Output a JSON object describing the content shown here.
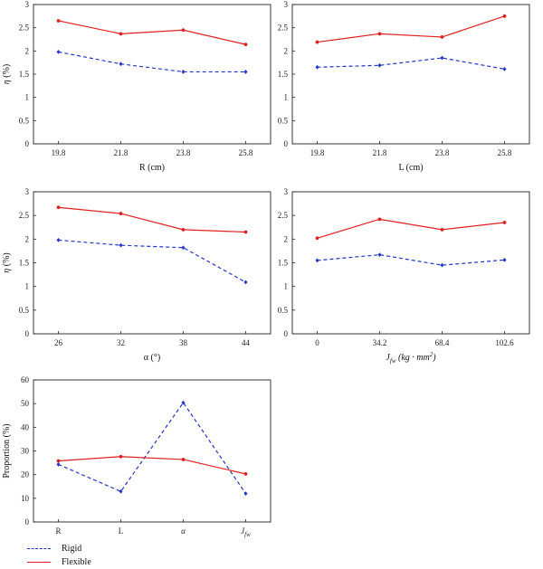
{
  "colors": {
    "rigid": "#2233cc",
    "flexible": "#e02020"
  },
  "legend": {
    "placement": "bottom-left",
    "rigid_label": "Rigid",
    "flexible_label": "Flexible"
  },
  "chart_data": [
    {
      "type": "line",
      "xlabel": "R (cm)",
      "ylabel": "η (%)",
      "categories": [
        "19.8",
        "21.8",
        "23.8",
        "25.8"
      ],
      "ylim": [
        0,
        3
      ],
      "yticks": [
        "0",
        "0.5",
        "1",
        "1.5",
        "2",
        "2.5",
        "3"
      ],
      "series": [
        {
          "name": "Rigid",
          "values": [
            1.98,
            1.72,
            1.55,
            1.55
          ]
        },
        {
          "name": "Flexible",
          "values": [
            2.65,
            2.37,
            2.45,
            2.14
          ]
        }
      ]
    },
    {
      "type": "line",
      "xlabel": "L (cm)",
      "ylabel": "",
      "categories": [
        "19.8",
        "21.8",
        "23.8",
        "25.8"
      ],
      "ylim": [
        0,
        3
      ],
      "yticks": [
        "0",
        "0.5",
        "1",
        "1.5",
        "2",
        "2.5",
        "3"
      ],
      "series": [
        {
          "name": "Rigid",
          "values": [
            1.65,
            1.69,
            1.85,
            1.61
          ]
        },
        {
          "name": "Flexible",
          "values": [
            2.19,
            2.37,
            2.3,
            2.75
          ]
        }
      ]
    },
    {
      "type": "line",
      "xlabel": "α (°)",
      "ylabel": "η (%)",
      "categories": [
        "26",
        "32",
        "38",
        "44"
      ],
      "ylim": [
        0,
        3
      ],
      "yticks": [
        "0",
        "0.5",
        "1",
        "1.5",
        "2",
        "2.5",
        "3"
      ],
      "series": [
        {
          "name": "Rigid",
          "values": [
            1.98,
            1.87,
            1.82,
            1.09
          ]
        },
        {
          "name": "Flexible",
          "values": [
            2.67,
            2.54,
            2.2,
            2.15
          ]
        }
      ]
    },
    {
      "type": "line",
      "xlabel": "J_fw (kg · mm²)",
      "ylabel": "",
      "categories": [
        "0",
        "34.2",
        "68.4",
        "102.6"
      ],
      "ylim": [
        0,
        3
      ],
      "yticks": [
        "0",
        "0.5",
        "1",
        "1.5",
        "2",
        "2.5",
        "3"
      ],
      "series": [
        {
          "name": "Rigid",
          "values": [
            1.55,
            1.67,
            1.45,
            1.56
          ]
        },
        {
          "name": "Flexible",
          "values": [
            2.02,
            2.42,
            2.2,
            2.35
          ]
        }
      ]
    },
    {
      "type": "line",
      "xlabel": "",
      "ylabel": "Proportion (%)",
      "categories": [
        "R",
        "L",
        "α",
        "J_fw"
      ],
      "ylim": [
        0,
        60
      ],
      "yticks": [
        "0",
        "10",
        "20",
        "30",
        "40",
        "50",
        "60"
      ],
      "series": [
        {
          "name": "Rigid",
          "values": [
            24.3,
            12.9,
            50.4,
            12.0
          ]
        },
        {
          "name": "Flexible",
          "values": [
            25.8,
            27.6,
            26.4,
            20.3
          ]
        }
      ]
    }
  ]
}
